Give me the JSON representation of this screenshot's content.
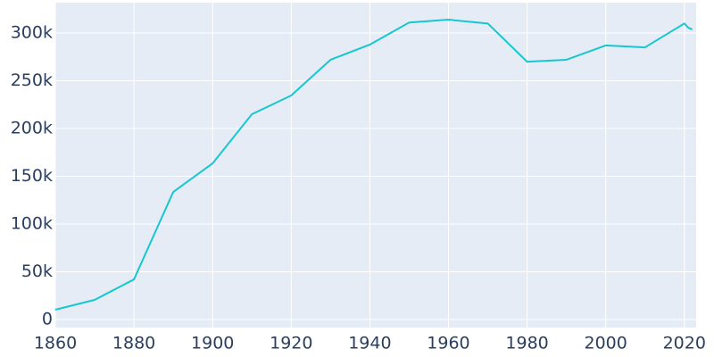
{
  "chart_data": {
    "type": "line",
    "x": [
      1860,
      1870,
      1880,
      1890,
      1900,
      1910,
      1920,
      1930,
      1940,
      1950,
      1960,
      1970,
      1980,
      1990,
      2000,
      2010,
      2020,
      2021,
      2022
    ],
    "values": [
      10300,
      20600,
      42000,
      133600,
      163500,
      215000,
      234600,
      272000,
      287900,
      311000,
      314000,
      310000,
      270000,
      272000,
      287000,
      285000,
      310000,
      305600,
      303700
    ],
    "color": "#17c7cf",
    "xlim": [
      1860,
      2023
    ],
    "xticks": [
      1860,
      1880,
      1900,
      1920,
      1940,
      1960,
      1980,
      2000,
      2020
    ],
    "ylim": [
      -8400,
      331800
    ],
    "yticks": [
      0,
      {
        "value": 50000,
        "label": "50k"
      },
      {
        "value": 100000,
        "label": "100k"
      },
      {
        "value": 150000,
        "label": "150k"
      },
      {
        "value": 200000,
        "label": "200k"
      },
      {
        "value": 250000,
        "label": "250k"
      },
      {
        "value": 300000,
        "label": "300k"
      }
    ],
    "grid": true
  }
}
